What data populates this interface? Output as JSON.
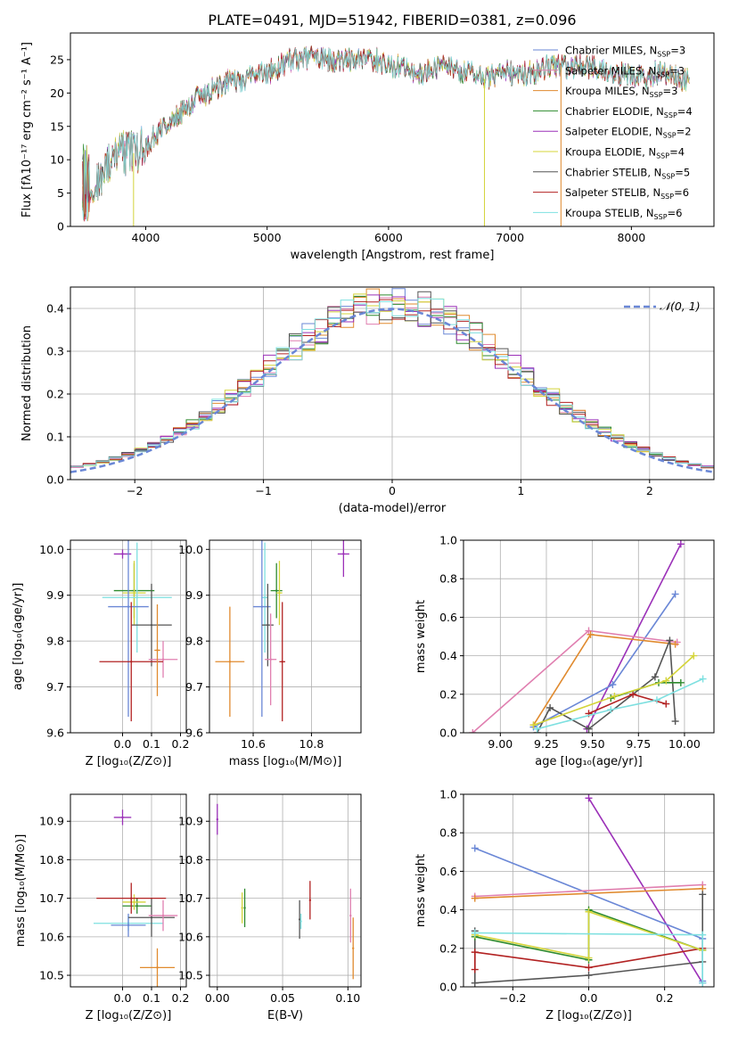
{
  "title": "PLATE=0491, MJD=51942, FIBERID=0381, z=0.096",
  "colors": {
    "c1": "#6a87d6",
    "c2": "#e08a2e",
    "c3": "#2e8b2e",
    "c4": "#9b30b8",
    "c5": "#d4d43a",
    "c6": "#555555",
    "c7": "#b22222",
    "c8": "#7ee0e0",
    "c9": "#e07fb0"
  },
  "chart_data": [
    {
      "id": "spectrum",
      "type": "line",
      "title": "PLATE=0491, MJD=51942, FIBERID=0381, z=0.096",
      "xlabel": "wavelength [Angstrom, rest frame]",
      "ylabel": "Flux [fλ10⁻¹⁷ erg cm⁻² s⁻¹ A⁻¹]",
      "xlim": [
        3380,
        8680
      ],
      "ylim": [
        0,
        29
      ],
      "grid": false,
      "xticks": [
        4000,
        5000,
        6000,
        7000,
        8000
      ],
      "yticks": [
        0,
        5,
        10,
        15,
        20,
        25
      ],
      "x": [
        3500,
        3600,
        3700,
        3800,
        3900,
        4000,
        4100,
        4200,
        4300,
        4400,
        4500,
        4600,
        4700,
        4800,
        4900,
        5000,
        5100,
        5200,
        5300,
        5400,
        5500,
        5600,
        5700,
        5800,
        5900,
        6000,
        6100,
        6200,
        6300,
        6400,
        6500,
        6600,
        6700,
        6800,
        6900,
        7000,
        7100,
        7200,
        7300,
        7400,
        7500,
        7600,
        7700,
        7800,
        7900,
        8000,
        8100,
        8200,
        8300,
        8400,
        8500,
        8600
      ],
      "y": [
        6,
        7,
        9,
        11,
        11,
        12,
        14,
        16,
        17,
        19,
        20,
        21,
        22,
        22,
        23,
        23,
        24,
        25,
        25,
        26,
        25,
        25,
        25,
        25,
        25,
        24,
        24,
        23,
        23,
        24,
        24,
        23,
        23,
        22,
        23,
        23,
        23,
        23,
        24,
        24,
        24,
        24,
        24,
        23,
        23,
        23,
        22,
        23,
        23,
        22,
        22,
        22
      ],
      "legend_loc": "upper right",
      "legend": [
        {
          "label": "Chabrier MILES, N_SSP=3",
          "color": "c1"
        },
        {
          "label": "Salpeter MILES, N_SSP=3",
          "color": "c9"
        },
        {
          "label": "Kroupa MILES, N_SSP=3",
          "color": "c2"
        },
        {
          "label": "Chabrier ELODIE, N_SSP=4",
          "color": "c3"
        },
        {
          "label": "Salpeter ELODIE, N_SSP=2",
          "color": "c4"
        },
        {
          "label": "Kroupa ELODIE, N_SSP=4",
          "color": "c5"
        },
        {
          "label": "Chabrier STELIB, N_SSP=5",
          "color": "c6"
        },
        {
          "label": "Salpeter STELIB, N_SSP=6",
          "color": "c7"
        },
        {
          "label": "Kroupa STELIB, N_SSP=6",
          "color": "c8"
        }
      ]
    },
    {
      "id": "residuals",
      "type": "line",
      "xlabel": "(data-model)/error",
      "ylabel": "Normed distribution",
      "xlim": [
        -2.5,
        2.5
      ],
      "ylim": [
        0,
        0.45
      ],
      "grid": true,
      "xticks": [
        -2,
        -1,
        0,
        1,
        2
      ],
      "yticks": [
        0.0,
        0.1,
        0.2,
        0.3,
        0.4
      ],
      "legend": [
        {
          "label": "𝒩(0, 1)",
          "color": "c1"
        }
      ],
      "legend_loc": "upper right",
      "reference_curve": "gaussian mean 0 sigma 1"
    },
    {
      "id": "age_vs_Z",
      "type": "scatter",
      "xlabel": "Z [log₁₀(Z/Z⊙)]",
      "ylabel": "age  [log₁₀(age/yr)]",
      "xlim": [
        -0.18,
        0.22
      ],
      "ylim": [
        9.6,
        10.02
      ],
      "grid": true,
      "xticks": [
        0.0,
        0.1,
        0.2
      ],
      "yticks": [
        9.6,
        9.7,
        9.8,
        9.9,
        10.0
      ],
      "points": [
        {
          "x": 0.0,
          "y": 9.99,
          "xerr": 0.03,
          "yerr": 0.01,
          "color": "c4"
        },
        {
          "x": 0.04,
          "y": 9.91,
          "xerr": 0.07,
          "yerr": 0.06,
          "color": "c3"
        },
        {
          "x": 0.04,
          "y": 9.905,
          "xerr": 0.04,
          "yerr": 0.07,
          "color": "c5"
        },
        {
          "x": 0.05,
          "y": 9.895,
          "xerr": 0.12,
          "yerr": 0.12,
          "color": "c8"
        },
        {
          "x": 0.02,
          "y": 9.875,
          "xerr": 0.07,
          "yerr": 0.24,
          "color": "c1"
        },
        {
          "x": 0.1,
          "y": 9.835,
          "xerr": 0.07,
          "yerr": 0.09,
          "color": "c6"
        },
        {
          "x": 0.14,
          "y": 9.76,
          "xerr": 0.05,
          "yerr": 0.04,
          "color": "c9"
        },
        {
          "x": 0.03,
          "y": 9.755,
          "xerr": 0.11,
          "yerr": 0.13,
          "color": "c7"
        },
        {
          "x": 0.12,
          "y": 9.78,
          "xerr": 0.01,
          "yerr": 0.1,
          "color": "c2"
        }
      ]
    },
    {
      "id": "age_vs_mass",
      "type": "scatter",
      "xlabel": "mass [log₁₀(M/M⊙)]",
      "ylabel": "",
      "xlim": [
        10.45,
        10.97
      ],
      "ylim": [
        9.6,
        10.02
      ],
      "grid": true,
      "xticks": [
        10.6,
        10.8
      ],
      "yticks": [
        9.6,
        9.7,
        9.8,
        9.9,
        10.0
      ],
      "points": [
        {
          "x": 10.91,
          "y": 9.99,
          "xerr": 0.02,
          "yerr": 0.05,
          "color": "c4"
        },
        {
          "x": 10.68,
          "y": 9.91,
          "xerr": 0.02,
          "yerr": 0.06,
          "color": "c3"
        },
        {
          "x": 10.69,
          "y": 9.905,
          "xerr": 0.01,
          "yerr": 0.07,
          "color": "c5"
        },
        {
          "x": 10.64,
          "y": 9.895,
          "xerr": 0.01,
          "yerr": 0.12,
          "color": "c8"
        },
        {
          "x": 10.63,
          "y": 9.875,
          "xerr": 0.03,
          "yerr": 0.24,
          "color": "c1"
        },
        {
          "x": 10.65,
          "y": 9.835,
          "xerr": 0.02,
          "yerr": 0.09,
          "color": "c6"
        },
        {
          "x": 10.66,
          "y": 9.76,
          "xerr": 0.02,
          "yerr": 0.1,
          "color": "c9"
        },
        {
          "x": 10.7,
          "y": 9.755,
          "xerr": 0.01,
          "yerr": 0.13,
          "color": "c7"
        },
        {
          "x": 10.52,
          "y": 9.755,
          "xerr": 0.05,
          "yerr": 0.12,
          "color": "c2"
        }
      ]
    },
    {
      "id": "weight_vs_age",
      "type": "line",
      "xlabel": "age  [log₁₀(age/yr)]",
      "ylabel": "mass weight",
      "xlim": [
        8.8,
        10.16
      ],
      "ylim": [
        0,
        1.0
      ],
      "grid": true,
      "xticks": [
        9.0,
        9.25,
        9.5,
        9.75,
        10.0
      ],
      "xticklabels": [
        "9.00",
        "9.25",
        "9.50",
        "9.75",
        "10.00"
      ],
      "yticks": [
        0.0,
        0.2,
        0.4,
        0.6,
        0.8,
        1.0
      ],
      "series": [
        {
          "color": "c4",
          "x": [
            9.47,
            9.98
          ],
          "y": [
            0.02,
            0.98
          ]
        },
        {
          "color": "c1",
          "x": [
            9.18,
            9.61,
            9.95
          ],
          "y": [
            0.03,
            0.25,
            0.72
          ]
        },
        {
          "color": "c9",
          "x": [
            8.85,
            9.48,
            9.96
          ],
          "y": [
            0.0,
            0.53,
            0.47
          ]
        },
        {
          "color": "c2",
          "x": [
            9.18,
            9.49,
            9.95
          ],
          "y": [
            0.04,
            0.51,
            0.46
          ]
        },
        {
          "color": "c6",
          "x": [
            9.2,
            9.27,
            9.48,
            9.84,
            9.92,
            9.95
          ],
          "y": [
            0.0,
            0.13,
            0.02,
            0.29,
            0.48,
            0.06
          ]
        },
        {
          "color": "c7",
          "x": [
            9.48,
            9.72,
            9.9
          ],
          "y": [
            0.1,
            0.2,
            0.15
          ]
        },
        {
          "color": "c3",
          "x": [
            9.6,
            9.86,
            9.98
          ],
          "y": [
            0.18,
            0.26,
            0.26
          ]
        },
        {
          "color": "c5",
          "x": [
            9.18,
            9.62,
            9.9,
            10.05
          ],
          "y": [
            0.04,
            0.19,
            0.27,
            0.4
          ]
        },
        {
          "color": "c8",
          "x": [
            9.2,
            9.6,
            9.85,
            10.1
          ],
          "y": [
            0.02,
            0.12,
            0.17,
            0.28
          ]
        }
      ]
    },
    {
      "id": "mass_vs_Z",
      "type": "scatter",
      "xlabel": "Z [log₁₀(Z/Z⊙)]",
      "ylabel": "mass [log₁₀(M/M⊙)]",
      "xlim": [
        -0.18,
        0.22
      ],
      "ylim": [
        10.47,
        10.97
      ],
      "grid": true,
      "xticks": [
        0.0,
        0.1,
        0.2
      ],
      "yticks": [
        10.5,
        10.6,
        10.7,
        10.8,
        10.9
      ],
      "points": [
        {
          "x": 0.0,
          "y": 10.91,
          "xerr": 0.03,
          "yerr": 0.02,
          "color": "c4"
        },
        {
          "x": 0.05,
          "y": 10.68,
          "xerr": 0.05,
          "yerr": 0.02,
          "color": "c3"
        },
        {
          "x": 0.04,
          "y": 10.69,
          "xerr": 0.04,
          "yerr": 0.02,
          "color": "c5"
        },
        {
          "x": 0.02,
          "y": 10.635,
          "xerr": 0.12,
          "yerr": 0.02,
          "color": "c8"
        },
        {
          "x": 0.02,
          "y": 10.63,
          "xerr": 0.06,
          "yerr": 0.03,
          "color": "c1"
        },
        {
          "x": 0.1,
          "y": 10.65,
          "xerr": 0.08,
          "yerr": 0.05,
          "color": "c6"
        },
        {
          "x": 0.14,
          "y": 10.655,
          "xerr": 0.05,
          "yerr": 0.04,
          "color": "c9"
        },
        {
          "x": 0.03,
          "y": 10.7,
          "xerr": 0.12,
          "yerr": 0.04,
          "color": "c7"
        },
        {
          "x": 0.12,
          "y": 10.52,
          "xerr": 0.06,
          "yerr": 0.05,
          "color": "c2"
        }
      ]
    },
    {
      "id": "mass_vs_ebv",
      "type": "scatter",
      "xlabel": "E(B-V)",
      "ylabel": "",
      "xlim": [
        -0.006,
        0.11
      ],
      "ylim": [
        10.47,
        10.97
      ],
      "grid": true,
      "xticks": [
        0.0,
        0.05,
        0.1
      ],
      "xticklabels": [
        "0.00",
        "0.05",
        "0.10"
      ],
      "yticks": [
        10.5,
        10.6,
        10.7,
        10.8,
        10.9
      ],
      "points": [
        {
          "x": 0.0,
          "y": 10.905,
          "yerr": 0.04,
          "color": "c4"
        },
        {
          "x": 0.019,
          "y": 10.675,
          "yerr": 0.04,
          "color": "c5"
        },
        {
          "x": 0.021,
          "y": 10.675,
          "yerr": 0.05,
          "color": "c3"
        },
        {
          "x": 0.063,
          "y": 10.645,
          "yerr": 0.05,
          "color": "c6"
        },
        {
          "x": 0.064,
          "y": 10.64,
          "yerr": 0.02,
          "color": "c8"
        },
        {
          "x": 0.071,
          "y": 10.695,
          "yerr": 0.05,
          "color": "c7"
        },
        {
          "x": 0.102,
          "y": 10.655,
          "yerr": 0.07,
          "color": "c9"
        },
        {
          "x": 0.104,
          "y": 10.57,
          "yerr": 0.08,
          "color": "c2"
        }
      ]
    },
    {
      "id": "weight_vs_Z",
      "type": "line",
      "xlabel": "Z [log₁₀(Z/Z⊙)]",
      "ylabel": "mass weight",
      "xlim": [
        -0.33,
        0.33
      ],
      "ylim": [
        0,
        1.0
      ],
      "grid": true,
      "xticks": [
        -0.2,
        0.0,
        0.2
      ],
      "xticklabels": [
        "−0.2",
        "0.0",
        "0.2"
      ],
      "yticks": [
        0.0,
        0.2,
        0.4,
        0.6,
        0.8,
        1.0
      ],
      "series": [
        {
          "color": "c4",
          "x": [
            0.0,
            0.3
          ],
          "y": [
            0.98,
            0.02
          ]
        },
        {
          "color": "c1",
          "x": [
            -0.3,
            0.3,
            0.3
          ],
          "y": [
            0.72,
            0.25,
            0.03
          ]
        },
        {
          "color": "c9",
          "x": [
            -0.3,
            0.3
          ],
          "y": [
            0.47,
            0.53
          ]
        },
        {
          "color": "c2",
          "x": [
            -0.3,
            0.3
          ],
          "y": [
            0.46,
            0.51
          ]
        },
        {
          "color": "c6",
          "x": [
            -0.3,
            -0.3,
            0.0,
            0.3,
            0.3
          ],
          "y": [
            0.29,
            0.02,
            0.06,
            0.13,
            0.48
          ]
        },
        {
          "color": "c7",
          "x": [
            -0.3,
            -0.3,
            0.0,
            0.3
          ],
          "y": [
            0.09,
            0.18,
            0.1,
            0.2
          ]
        },
        {
          "color": "c3",
          "x": [
            -0.3,
            0.0,
            0.0,
            0.3
          ],
          "y": [
            0.26,
            0.14,
            0.4,
            0.19
          ]
        },
        {
          "color": "c5",
          "x": [
            -0.3,
            0.0,
            0.0,
            0.3
          ],
          "y": [
            0.27,
            0.15,
            0.39,
            0.19
          ]
        },
        {
          "color": "c8",
          "x": [
            -0.3,
            0.3,
            0.3
          ],
          "y": [
            0.28,
            0.27,
            0.02
          ]
        }
      ]
    }
  ]
}
